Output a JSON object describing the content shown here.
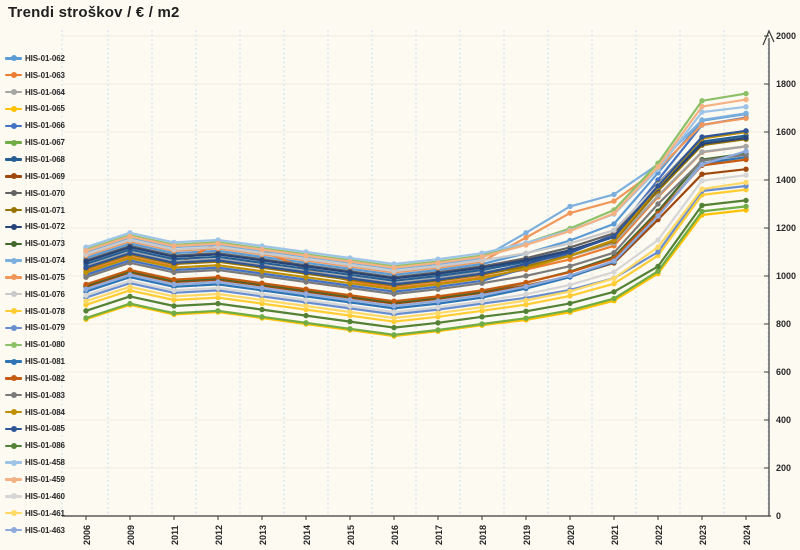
{
  "title": "Trendi stroškov / € / m2",
  "colors": {
    "background": "#FDFAF2",
    "axis": "#3b3b3b",
    "text": "#262626",
    "gridline_vertical": "#CBDDF2",
    "gridline_horizontal": "#F3EDE1"
  },
  "chart_data": {
    "type": "line",
    "title": "Trendi stroškov / € / m2",
    "xlabel": "",
    "ylabel": "",
    "ylim": [
      0,
      2000
    ],
    "ytick_interval": 200,
    "yticks": [
      "0",
      "200",
      "400",
      "600",
      "800",
      "1000",
      "1200",
      "1400",
      "1600",
      "1800",
      "2000"
    ],
    "legend_position": "left",
    "grid": "vertical-dashed-blue, faint-horizontal",
    "marker": "circle",
    "categories": [
      "2006",
      "2009",
      "2011",
      "2012",
      "2013",
      "2014",
      "2015",
      "2016",
      "2017",
      "2018",
      "2019",
      "2020",
      "2021",
      "2022",
      "2023",
      "2024"
    ],
    "series": [
      {
        "name": "HIS-01-062",
        "color": "#5B9BD5",
        "values": [
          1075,
          1135,
          1095,
          1105,
          1080,
          1055,
          1030,
          1005,
          1025,
          1050,
          1094,
          1148,
          1217,
          1430,
          1647,
          1675
        ]
      },
      {
        "name": "HIS-01-063",
        "color": "#ED7D31",
        "values": [
          1020,
          1080,
          1040,
          1140,
          1105,
          1030,
          980,
          950,
          970,
          995,
          1027,
          1069,
          1126,
          1330,
          1516,
          1540
        ]
      },
      {
        "name": "HIS-01-064",
        "color": "#A5A5A5",
        "values": [
          1040,
          1100,
          1060,
          1070,
          1045,
          1020,
          995,
          970,
          990,
          1015,
          1044,
          1083,
          1137,
          1335,
          1517,
          1540
        ]
      },
      {
        "name": "HIS-01-065",
        "color": "#FFC000",
        "values": [
          820,
          880,
          840,
          850,
          825,
          800,
          775,
          750,
          770,
          795,
          817,
          849,
          897,
          1010,
          1254,
          1275
        ]
      },
      {
        "name": "HIS-01-066",
        "color": "#4472C4",
        "values": [
          1005,
          1065,
          1025,
          1035,
          1010,
          985,
          960,
          935,
          955,
          980,
          1032,
          1095,
          1172,
          1400,
          1629,
          1660
        ]
      },
      {
        "name": "HIS-01-067",
        "color": "#70AD47",
        "values": [
          825,
          885,
          845,
          855,
          830,
          805,
          780,
          755,
          775,
          800,
          824,
          857,
          906,
          1020,
          1269,
          1290
        ]
      },
      {
        "name": "HIS-01-068",
        "color": "#255E91",
        "values": [
          1050,
          1110,
          1070,
          1080,
          1055,
          1030,
          1005,
          980,
          1000,
          1025,
          1059,
          1104,
          1163,
          1370,
          1560,
          1585
        ]
      },
      {
        "name": "HIS-01-069",
        "color": "#9E480E",
        "values": [
          955,
          1015,
          975,
          985,
          960,
          935,
          910,
          885,
          905,
          930,
          960,
          999,
          1054,
          1235,
          1424,
          1445
        ]
      },
      {
        "name": "HIS-01-070",
        "color": "#636363",
        "values": [
          1065,
          1125,
          1085,
          1095,
          1070,
          1045,
          1020,
          995,
          1015,
          1040,
          1074,
          1119,
          1178,
          1385,
          1575,
          1600
        ]
      },
      {
        "name": "HIS-01-071",
        "color": "#997300",
        "values": [
          1030,
          1090,
          1050,
          1060,
          1035,
          1010,
          985,
          960,
          980,
          1005,
          1040,
          1085,
          1145,
          1355,
          1545,
          1570
        ]
      },
      {
        "name": "HIS-01-072",
        "color": "#264478",
        "values": [
          1060,
          1120,
          1080,
          1090,
          1065,
          1040,
          1015,
          990,
          1010,
          1035,
          1066,
          1107,
          1164,
          1365,
          1551,
          1575
        ]
      },
      {
        "name": "HIS-01-073",
        "color": "#43682B",
        "values": [
          960,
          1020,
          980,
          990,
          965,
          940,
          915,
          890,
          910,
          935,
          972,
          1018,
          1080,
          1270,
          1485,
          1510
        ]
      },
      {
        "name": "HIS-01-074",
        "color": "#7CAFDD",
        "values": [
          1100,
          1160,
          1120,
          1130,
          1105,
          1080,
          1055,
          1030,
          1050,
          1075,
          1180,
          1290,
          1340,
          1465,
          1650,
          1678
        ]
      },
      {
        "name": "HIS-01-075",
        "color": "#F1975A",
        "values": [
          1085,
          1145,
          1105,
          1115,
          1090,
          1065,
          1040,
          1015,
          1035,
          1060,
          1160,
          1262,
          1312,
          1445,
          1630,
          1657
        ]
      },
      {
        "name": "HIS-01-076",
        "color": "#C9C9C9",
        "values": [
          1090,
          1150,
          1110,
          1120,
          1095,
          1070,
          1045,
          1020,
          1040,
          1065,
          1095,
          1136,
          1191,
          1380,
          1576,
          1600
        ]
      },
      {
        "name": "HIS-01-078",
        "color": "#FFCD33",
        "values": [
          880,
          940,
          900,
          910,
          885,
          860,
          835,
          810,
          830,
          855,
          881,
          917,
          968,
          1085,
          1338,
          1360
        ]
      },
      {
        "name": "HIS-01-079",
        "color": "#698ED0",
        "values": [
          910,
          970,
          930,
          940,
          915,
          890,
          865,
          840,
          860,
          885,
          909,
          942,
          991,
          1100,
          1354,
          1375
        ]
      },
      {
        "name": "HIS-01-080",
        "color": "#8CC168",
        "values": [
          1110,
          1170,
          1130,
          1140,
          1115,
          1090,
          1065,
          1040,
          1060,
          1085,
          1137,
          1198,
          1275,
          1470,
          1730,
          1760
        ]
      },
      {
        "name": "HIS-01-081",
        "color": "#2E75B6",
        "values": [
          935,
          995,
          955,
          965,
          940,
          915,
          890,
          865,
          885,
          910,
          948,
          996,
          1059,
          1250,
          1469,
          1495
        ]
      },
      {
        "name": "HIS-01-082",
        "color": "#C55A11",
        "values": [
          965,
          1025,
          985,
          995,
          970,
          945,
          920,
          895,
          915,
          940,
          973,
          1016,
          1073,
          1260,
          1461,
          1485
        ]
      },
      {
        "name": "HIS-01-083",
        "color": "#7B7B7B",
        "values": [
          995,
          1055,
          1015,
          1025,
          1000,
          975,
          950,
          925,
          945,
          970,
          1001,
          1041,
          1097,
          1300,
          1481,
          1505
        ]
      },
      {
        "name": "HIS-01-084",
        "color": "#BF8F00",
        "values": [
          1015,
          1075,
          1035,
          1045,
          1020,
          995,
          970,
          945,
          965,
          990,
          1032,
          1084,
          1150,
          1370,
          1573,
          1600
        ]
      },
      {
        "name": "HIS-01-085",
        "color": "#2F5597",
        "values": [
          1035,
          1095,
          1055,
          1065,
          1040,
          1015,
          990,
          965,
          985,
          1010,
          1050,
          1099,
          1164,
          1375,
          1579,
          1605
        ]
      },
      {
        "name": "HIS-01-086",
        "color": "#538135",
        "values": [
          855,
          915,
          875,
          885,
          860,
          835,
          810,
          785,
          805,
          830,
          853,
          886,
          934,
          1040,
          1294,
          1315
        ]
      },
      {
        "name": "HIS-01-458",
        "color": "#9DC3E6",
        "values": [
          1120,
          1180,
          1140,
          1150,
          1125,
          1100,
          1075,
          1050,
          1070,
          1095,
          1138,
          1190,
          1258,
          1445,
          1683,
          1705
        ]
      },
      {
        "name": "HIS-01-459",
        "color": "#F4B183",
        "values": [
          1105,
          1165,
          1125,
          1135,
          1110,
          1085,
          1060,
          1035,
          1055,
          1080,
          1129,
          1187,
          1261,
          1455,
          1706,
          1735
        ]
      },
      {
        "name": "HIS-01-460",
        "color": "#D6D6D6",
        "values": [
          920,
          980,
          940,
          950,
          925,
          900,
          875,
          850,
          870,
          895,
          924,
          963,
          1017,
          1150,
          1397,
          1420
        ]
      },
      {
        "name": "HIS-01-461",
        "color": "#FFD966",
        "values": [
          895,
          955,
          915,
          925,
          900,
          875,
          850,
          825,
          845,
          870,
          898,
          936,
          990,
          1120,
          1362,
          1390
        ]
      },
      {
        "name": "HIS-01-463",
        "color": "#8FAADC",
        "values": [
          945,
          1005,
          965,
          975,
          950,
          925,
          900,
          875,
          895,
          920,
          956,
          1002,
          1062,
          1250,
          1465,
          1520
        ]
      }
    ]
  }
}
